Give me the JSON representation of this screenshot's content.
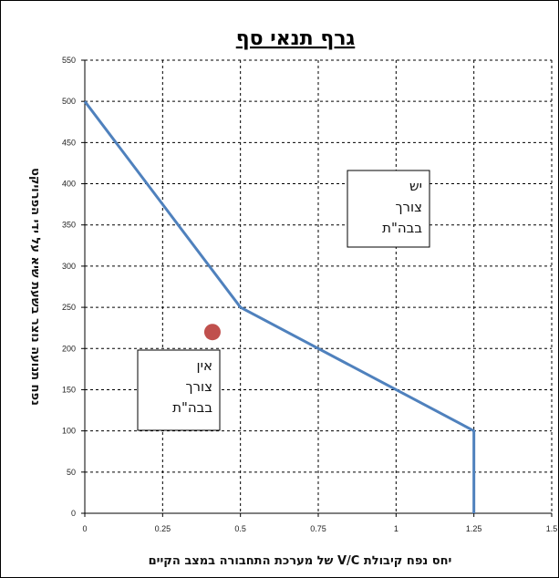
{
  "chart_data": {
    "type": "line",
    "title": "גרף תנאי סף",
    "xlabel": "יחס נפח קיבולת V/C של מערכת התחבורה במצב הקיים",
    "ylabel": "נפח תנועה נוצר בשעת שיא על ידי הפרויקט",
    "xlim": [
      0,
      1.5
    ],
    "ylim": [
      0,
      550
    ],
    "x_ticks": [
      "0",
      "0.25",
      "0.5",
      "0.75",
      "1",
      "1.25",
      "1.5"
    ],
    "y_ticks": [
      "0",
      "50",
      "100",
      "150",
      "200",
      "250",
      "300",
      "350",
      "400",
      "450",
      "500",
      "550"
    ],
    "grid": true,
    "series": [
      {
        "color": "#4f81bd",
        "points": [
          [
            0,
            500
          ],
          [
            0.5,
            250
          ],
          [
            1.25,
            100
          ],
          [
            1.25,
            0
          ]
        ]
      }
    ],
    "marker": {
      "x": 0.41,
      "y": 220,
      "color": "#c0504d"
    },
    "annotations": [
      {
        "lines": [
          "יש",
          "צורך",
          "בבה\"ת"
        ]
      },
      {
        "lines": [
          "אין",
          "צורך",
          "בבה\"ת"
        ]
      }
    ]
  }
}
